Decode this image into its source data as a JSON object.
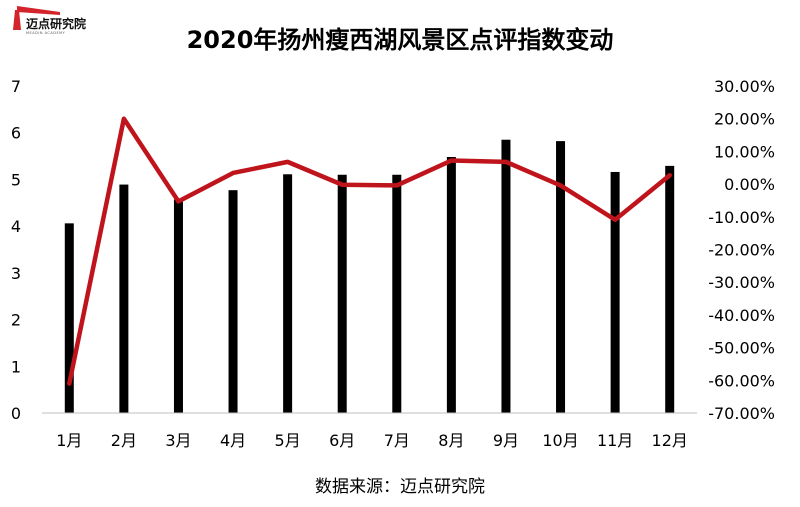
{
  "logo": {
    "text": "迈点研究院",
    "subtext": "MEADIN  ACADEMY"
  },
  "source": "数据来源：迈点研究院",
  "chart_data": {
    "type": "bar+line",
    "title": "2020年扬州瘦西湖风景区点评指数变动",
    "categories": [
      "1月",
      "2月",
      "3月",
      "4月",
      "5月",
      "6月",
      "7月",
      "8月",
      "9月",
      "10月",
      "11月",
      "12月"
    ],
    "series": [
      {
        "axis": "left",
        "type": "bar",
        "color": "#000000",
        "values": [
          4.06,
          4.89,
          4.57,
          4.77,
          5.11,
          5.1,
          5.1,
          5.48,
          5.85,
          5.82,
          5.16,
          5.29
        ]
      },
      {
        "axis": "right",
        "type": "line",
        "color": "#C0141C",
        "values": [
          -61.0,
          20.0,
          -5.3,
          3.4,
          6.8,
          -0.2,
          -0.4,
          7.2,
          6.8,
          -0.4,
          -10.9,
          2.7
        ]
      }
    ],
    "y_left": {
      "min": 0,
      "max": 7,
      "ticks": [
        "0",
        "1",
        "2",
        "3",
        "4",
        "5",
        "6",
        "7"
      ]
    },
    "y_right": {
      "min": -70,
      "max": 30,
      "ticks": [
        "-70.00%",
        "-60.00%",
        "-50.00%",
        "-40.00%",
        "-30.00%",
        "-20.00%",
        "-10.00%",
        "0.00%",
        "10.00%",
        "20.00%",
        "30.00%"
      ]
    },
    "grid": false,
    "legend": "none"
  }
}
